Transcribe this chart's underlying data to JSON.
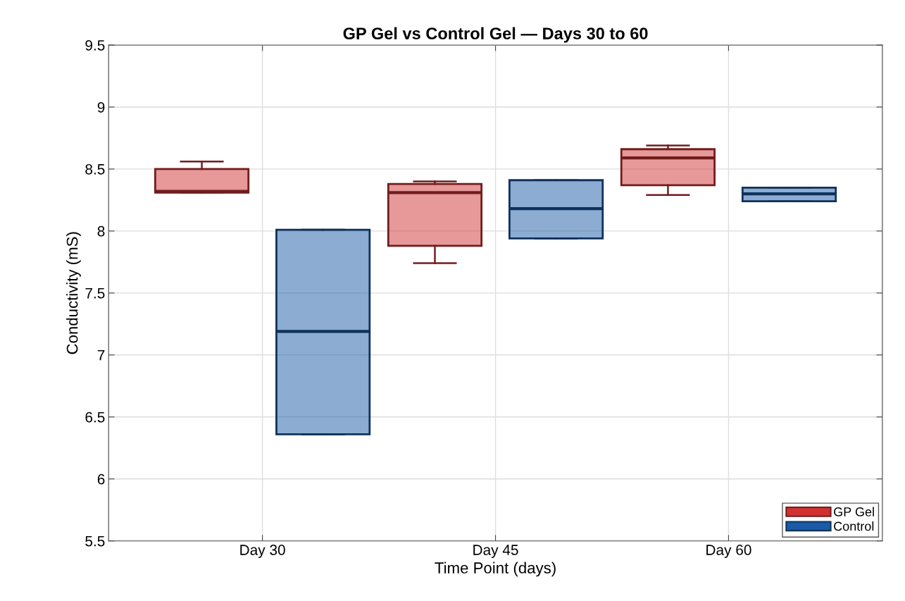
{
  "chart_data": {
    "type": "box",
    "title": "GP Gel vs Control Gel — Days 30 to 60",
    "xlabel": "Time Point (days)",
    "ylabel": "Conductivity (mS)",
    "categories": [
      "Day 30",
      "Day 45",
      "Day 60"
    ],
    "series": [
      {
        "name": "GP Gel",
        "color": "#d03232",
        "boxes": [
          {
            "low": 8.31,
            "q1": 8.31,
            "median": 8.32,
            "q3": 8.5,
            "high": 8.56
          },
          {
            "low": 7.74,
            "q1": 7.88,
            "median": 8.31,
            "q3": 8.38,
            "high": 8.4
          },
          {
            "low": 8.29,
            "q1": 8.37,
            "median": 8.59,
            "q3": 8.66,
            "high": 8.69
          }
        ]
      },
      {
        "name": "Control",
        "color": "#1a5aa6",
        "boxes": [
          {
            "low": 6.36,
            "q1": 6.36,
            "median": 7.19,
            "q3": 8.01,
            "high": 8.01
          },
          {
            "low": 7.94,
            "q1": 7.94,
            "median": 8.18,
            "q3": 8.41,
            "high": 8.41
          },
          {
            "low": 8.24,
            "q1": 8.24,
            "median": 8.3,
            "q3": 8.35,
            "high": 8.35
          }
        ]
      }
    ],
    "ylim": [
      5.5,
      9.5
    ],
    "yticks": [
      5.5,
      6,
      6.5,
      7,
      7.5,
      8,
      8.5,
      9,
      9.5
    ],
    "grid": true,
    "legend": "bottom right"
  }
}
